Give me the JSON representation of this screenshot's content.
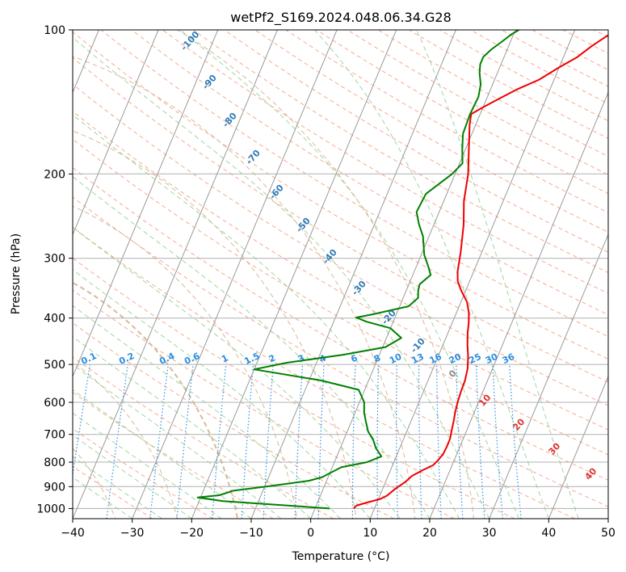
{
  "chart_data": {
    "type": "line",
    "title": "wetPf2_S169.2024.048.06.34.G28",
    "xlabel": "Temperature (°C)",
    "ylabel": "Pressure (hPa)",
    "xlim": [
      -40,
      50
    ],
    "ylim": [
      1050,
      100
    ],
    "yscale": "log",
    "grid": true,
    "x_ticks": [
      -40,
      -30,
      -20,
      -10,
      0,
      10,
      20,
      30,
      40,
      50
    ],
    "x_tick_labels": [
      "−40",
      "−30",
      "−20",
      "−10",
      "0",
      "10",
      "20",
      "30",
      "40",
      "50"
    ],
    "y_ticks": [
      100,
      200,
      300,
      400,
      500,
      600,
      700,
      800,
      900,
      1000
    ],
    "y_tick_labels": [
      "100",
      "200",
      "300",
      "400",
      "500",
      "600",
      "700",
      "800",
      "900",
      "1000"
    ],
    "series": [
      {
        "role": "temperature",
        "color": "#ee0000",
        "points": [
          [
            6.5,
            1000
          ],
          [
            6.8,
            985
          ],
          [
            8.5,
            970
          ],
          [
            10.3,
            955
          ],
          [
            11.2,
            940
          ],
          [
            12.1,
            910
          ],
          [
            13.3,
            880
          ],
          [
            14.0,
            855
          ],
          [
            15.5,
            830
          ],
          [
            16.8,
            812
          ],
          [
            17.3,
            792
          ],
          [
            17.7,
            770
          ],
          [
            17.8,
            745
          ],
          [
            17.8,
            715
          ],
          [
            17.5,
            688
          ],
          [
            17.2,
            660
          ],
          [
            16.8,
            630
          ],
          [
            16.5,
            600
          ],
          [
            16.3,
            570
          ],
          [
            16.2,
            540
          ],
          [
            15.8,
            510
          ],
          [
            15.0,
            480
          ],
          [
            14.1,
            455
          ],
          [
            13.3,
            430
          ],
          [
            12.8,
            410
          ],
          [
            12.1,
            390
          ],
          [
            11.0,
            370
          ],
          [
            9.2,
            350
          ],
          [
            8.0,
            335
          ],
          [
            7.3,
            320
          ],
          [
            6.4,
            290
          ],
          [
            5.0,
            255
          ],
          [
            3.4,
            228
          ],
          [
            2.2,
            200
          ],
          [
            0.6,
            178
          ],
          [
            -1.0,
            158
          ],
          [
            -1.5,
            150
          ],
          [
            -0.3,
            146
          ],
          [
            1.8,
            140
          ],
          [
            4.5,
            133
          ],
          [
            7.5,
            127
          ],
          [
            9.9,
            120
          ],
          [
            12.3,
            114
          ],
          [
            14.0,
            108
          ],
          [
            15.8,
            103
          ],
          [
            17.0,
            100
          ]
        ]
      },
      {
        "role": "dewpoint",
        "color": "#008000",
        "points": [
          [
            2.5,
            1000
          ],
          [
            -5.0,
            985
          ],
          [
            -16.0,
            965
          ],
          [
            -20.5,
            948
          ],
          [
            -17.0,
            938
          ],
          [
            -15.0,
            918
          ],
          [
            -9.0,
            897
          ],
          [
            -3.0,
            875
          ],
          [
            -1.0,
            860
          ],
          [
            1.5,
            820
          ],
          [
            5.5,
            800
          ],
          [
            7.5,
            778
          ],
          [
            6.0,
            748
          ],
          [
            5.0,
            720
          ],
          [
            3.5,
            690
          ],
          [
            2.5,
            660
          ],
          [
            1.5,
            630
          ],
          [
            0.8,
            600
          ],
          [
            -1.0,
            565
          ],
          [
            -8.0,
            540
          ],
          [
            -20.0,
            512
          ],
          [
            -15.0,
            496
          ],
          [
            -6.0,
            477
          ],
          [
            0.5,
            460
          ],
          [
            2.5,
            440
          ],
          [
            0.0,
            420
          ],
          [
            -4.5,
            407
          ],
          [
            -6.5,
            399
          ],
          [
            -4.0,
            393
          ],
          [
            1.5,
            378
          ],
          [
            2.5,
            363
          ],
          [
            2.0,
            350
          ],
          [
            1.8,
            340
          ],
          [
            3.0,
            325
          ],
          [
            2.0,
            312
          ],
          [
            0.5,
            295
          ],
          [
            -1.0,
            270
          ],
          [
            -2.5,
            255
          ],
          [
            -3.8,
            240
          ],
          [
            -3.5,
            220
          ],
          [
            -0.5,
            200
          ],
          [
            0.5,
            190
          ],
          [
            -0.5,
            178
          ],
          [
            -1.5,
            165
          ],
          [
            -1.7,
            150
          ],
          [
            -1.5,
            138
          ],
          [
            -2.0,
            130
          ],
          [
            -3.0,
            123
          ],
          [
            -3.5,
            118
          ],
          [
            -3.5,
            114
          ],
          [
            -2.7,
            110
          ],
          [
            -1.5,
            106
          ],
          [
            -0.3,
            102
          ],
          [
            0.6,
            100
          ]
        ]
      }
    ],
    "mixing_ratio_labels": [
      "0.1",
      "0.2",
      "0.4",
      "0.6",
      "1",
      "1.5",
      "2",
      "3",
      "4",
      "6",
      "8",
      "10",
      "13",
      "16",
      "20",
      "25",
      "30",
      "36"
    ],
    "wet_adiabat_labels": [
      "-100",
      "-90",
      "-80",
      "-70",
      "-60",
      "-50",
      "-40",
      "-30",
      "-20",
      "-10",
      "0",
      "10",
      "20",
      "30",
      "40"
    ],
    "colors": {
      "isobar": "#b0b0b0",
      "isotherm": "#9a9a9a",
      "dry_adiabat": "#f7a98e",
      "moist_adiabat": "#9fd69f",
      "mixing_ratio": "#2b8ee0",
      "theta_e": "#d9b99a",
      "label_cold": "#2e7bb6",
      "label_zero": "#888888",
      "label_warm": "#dd3333",
      "mixing_label": "#2b8ee0"
    }
  }
}
